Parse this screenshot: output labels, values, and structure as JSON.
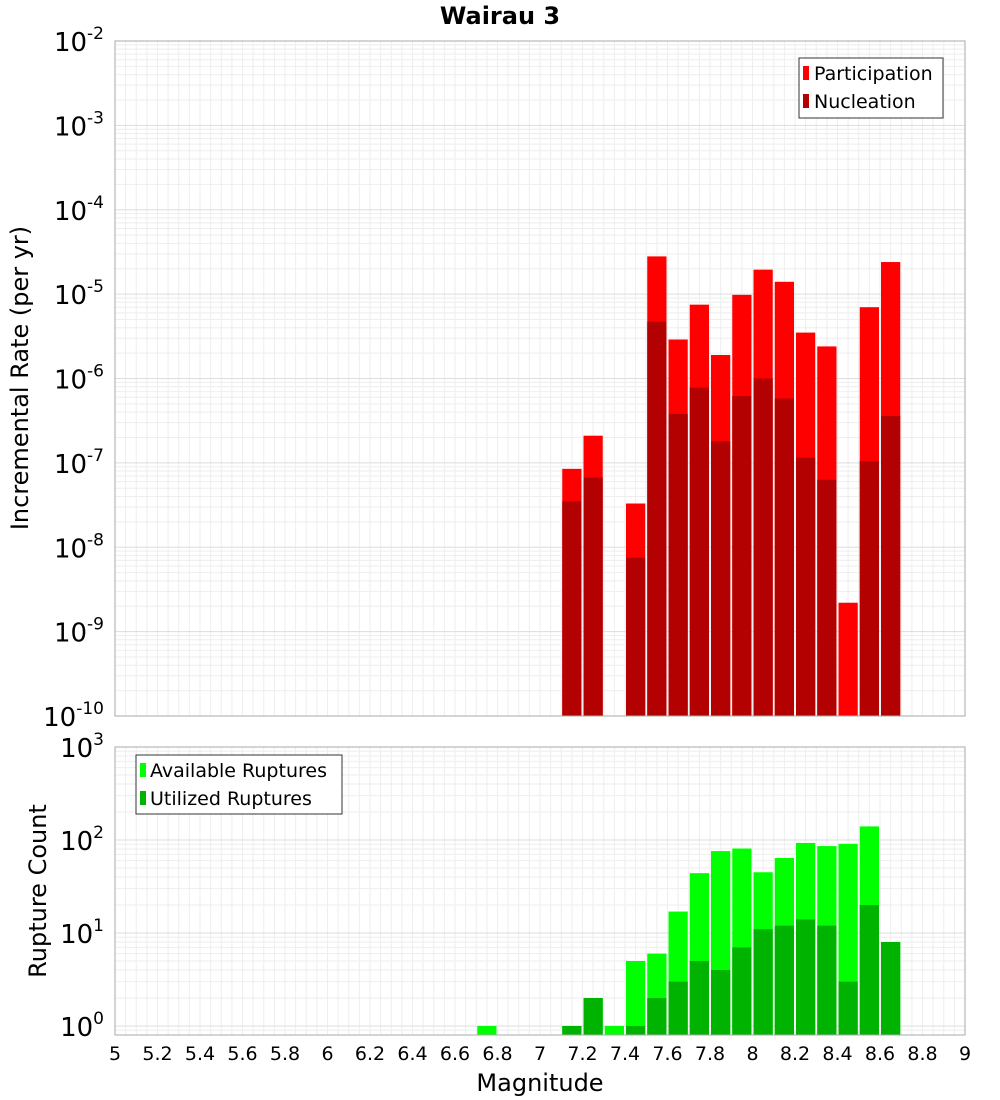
{
  "title": "Wairau 3",
  "xlabel": "Magnitude",
  "chart_data": [
    {
      "type": "bar",
      "ylabel": "Incremental Rate (per yr)",
      "yscale": "log",
      "ylim": [
        1e-10,
        0.01
      ],
      "xlim": [
        5,
        9
      ],
      "grid": true,
      "legend": "top-right",
      "x": [
        7.15,
        7.25,
        7.45,
        7.55,
        7.65,
        7.75,
        7.85,
        7.95,
        8.05,
        8.15,
        8.25,
        8.35,
        8.45,
        8.55,
        8.65
      ],
      "series": [
        {
          "name": "Participation",
          "color": "#ff0000",
          "values": [
            8.5e-08,
            2.1e-07,
            3.3e-08,
            2.8e-05,
            2.9e-06,
            7.5e-06,
            1.9e-06,
            9.8e-06,
            1.95e-05,
            1.4e-05,
            3.5e-06,
            2.4e-06,
            2.2e-09,
            7e-06,
            2.4e-05
          ]
        },
        {
          "name": "Nucleation",
          "color": "#b30000",
          "values": [
            3.5e-08,
            6.7e-08,
            7.5e-09,
            4.7e-06,
            3.8e-07,
            7.8e-07,
            1.8e-07,
            6.2e-07,
            1e-06,
            5.8e-07,
            1.15e-07,
            6.3e-08,
            null,
            1.05e-07,
            3.6e-07
          ]
        }
      ]
    },
    {
      "type": "bar",
      "ylabel": "Rupture Count",
      "yscale": "log",
      "ylim": [
        0.8,
        1000
      ],
      "xlim": [
        5,
        9
      ],
      "grid": true,
      "legend": "top-left",
      "x": [
        6.75,
        7.15,
        7.25,
        7.35,
        7.45,
        7.55,
        7.65,
        7.75,
        7.85,
        7.95,
        8.05,
        8.15,
        8.25,
        8.35,
        8.45,
        8.55,
        8.65
      ],
      "series": [
        {
          "name": "Available Ruptures",
          "color": "#00ff00",
          "values": [
            1,
            1,
            2,
            1,
            5,
            6,
            17,
            44,
            76,
            81,
            45,
            64,
            93,
            86,
            91,
            140,
            8
          ]
        },
        {
          "name": "Utilized Ruptures",
          "color": "#00b300",
          "values": [
            null,
            1,
            2,
            null,
            1,
            2,
            3,
            5,
            4,
            7,
            11,
            12,
            14,
            12,
            3,
            20,
            8
          ]
        }
      ]
    }
  ],
  "x_ticks": [
    "5",
    "5.2",
    "5.4",
    "5.6",
    "5.8",
    "6",
    "6.2",
    "6.4",
    "6.6",
    "6.8",
    "7",
    "7.2",
    "7.4",
    "7.6",
    "7.8",
    "8",
    "8.2",
    "8.4",
    "8.6",
    "8.8",
    "9"
  ],
  "top_y_ticks": {
    "base": "10",
    "exponents": [
      "-2",
      "-3",
      "-4",
      "-5",
      "-6",
      "-7",
      "-8",
      "-9",
      "-10"
    ]
  },
  "bottom_y_ticks": {
    "base": "10",
    "exponents": [
      "3",
      "2",
      "1",
      "0"
    ]
  }
}
